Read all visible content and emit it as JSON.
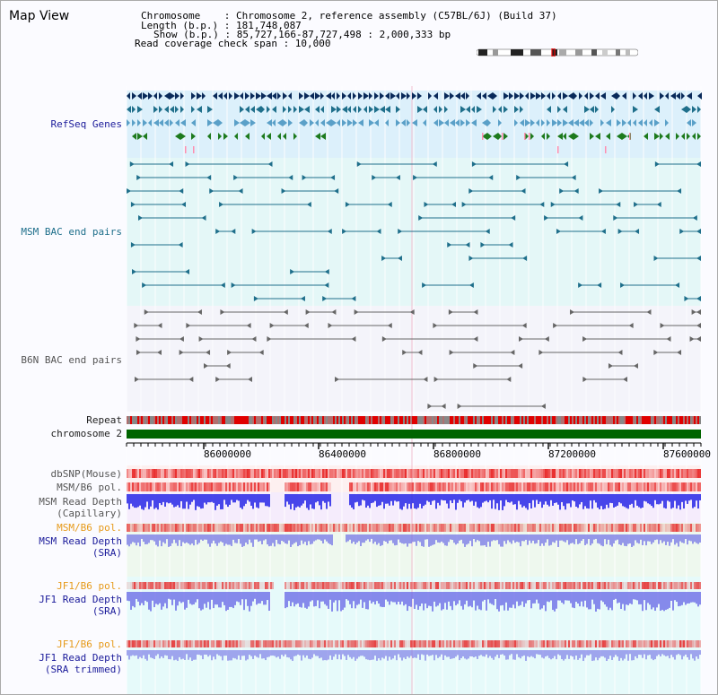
{
  "title": "Map View",
  "info": {
    "chromosome": "Chromosome    : Chromosome 2, reference assembly (C57BL/6J) (Build 37)",
    "length": "Length (b.p.) : 181,748,087",
    "show": "Show (b.p.) : 85,727,166-87,727,498 : 2,000,333 bp",
    "coverage": "Read coverage check span : 10,000"
  },
  "tracks": {
    "refseq": "RefSeq Genes",
    "msm_bac": "MSM BAC end pairs",
    "b6n_bac": "B6N BAC end pairs",
    "repeat": "Repeat",
    "chromosome": "chromosome 2",
    "dbsnp": "dbSNP(Mouse)",
    "msm_b6_pol_1": "MSM/B6 pol.",
    "msm_depth_cap_1": "MSM Read Depth",
    "msm_depth_cap_2": "(Capillary)",
    "msm_b6_pol_2": "MSM/B6 pol.",
    "msm_depth_sra_1": "MSM Read Depth",
    "msm_depth_sra_2": "(SRA)",
    "jf1_pol_1": "JF1/B6 pol.",
    "jf1_depth_1": "JF1 Read Depth",
    "jf1_depth_2": "(SRA)",
    "jf1_pol_2": "JF1/B6 pol.",
    "jf1_trim_1": "JF1 Read Depth",
    "jf1_trim_2": "(SRA trimmed)"
  },
  "axis_ticks": [
    "86000000",
    "86400000",
    "86800000",
    "87200000",
    "87600000"
  ],
  "colors": {
    "navy": "#0a2a5a",
    "teal": "#1f6f8b",
    "light_teal": "#5aa0c8",
    "green": "#1d7a1d",
    "chrom_green": "#006400",
    "red": "#ee0000",
    "blue": "#1a1add",
    "gray": "#666666",
    "orange": "#e69a1a"
  }
}
